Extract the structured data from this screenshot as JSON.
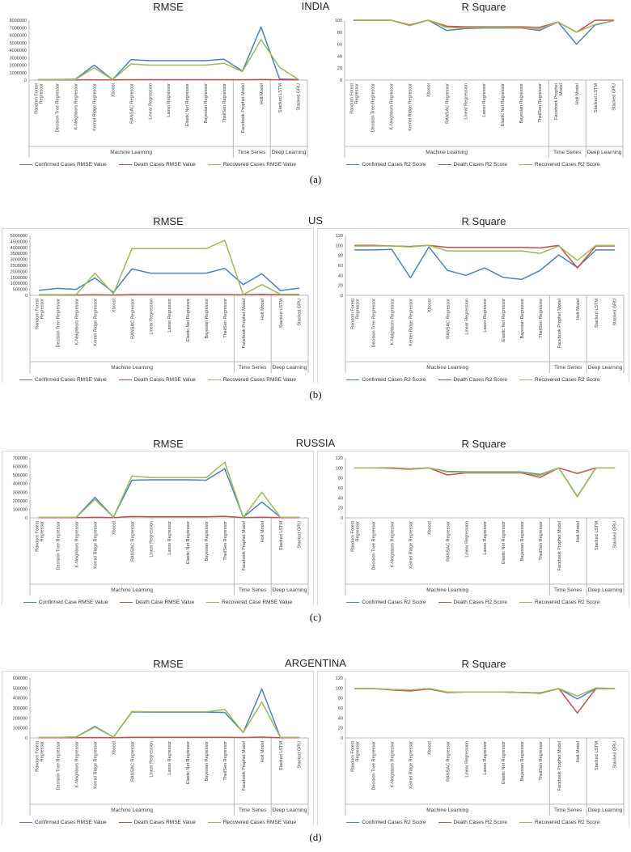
{
  "chart_data": {
    "type": "line",
    "legend_position": "bottom",
    "grid": false,
    "categories": [
      "Random Forest Regressor",
      "Decision Tree Regressor",
      "K-Neighbors Regressor",
      "Kernel Ridge Regressor",
      "Xboost",
      "RANSAC Regressor",
      "Linear Regression",
      "Lasso Regressor",
      "Elastic Net Regressor",
      "Bayesian Regressor",
      "TheilSen Regressor",
      "Facebook Prophet Model",
      "Holt Model",
      "Stacked LSTM",
      "Stacked GRU"
    ],
    "category_groups": [
      {
        "label": "Machine Learning",
        "count": 11
      },
      {
        "label": "Time Series",
        "count": 2
      },
      {
        "label": "Deep Learning",
        "count": 2
      }
    ],
    "default_category_wraps": {
      "0": [
        "Random Forest",
        "Regressor"
      ]
    },
    "colors": {
      "confirmed": "#4F81BD",
      "death": "#C0504D",
      "recovered": "#9BBB59"
    },
    "rows": [
      {
        "country": "INDIA",
        "caption": "(a)",
        "charts": [
          {
            "title": "RMSE",
            "ylim": [
              0,
              8000000
            ],
            "ytick_step": 1000000,
            "series": [
              {
                "name": "Confirmed Cases RMSE Value",
                "color": "#4F81BD",
                "values": [
                  80000,
                  80000,
                  120000,
                  2000000,
                  80000,
                  2750000,
                  2600000,
                  2600000,
                  2600000,
                  2600000,
                  2800000,
                  1200000,
                  7100000,
                  150000,
                  80000
                ]
              },
              {
                "name": "Death Cases RMSE Value",
                "color": "#C0504D",
                "values": [
                  20000,
                  20000,
                  20000,
                  40000,
                  20000,
                  50000,
                  50000,
                  50000,
                  50000,
                  50000,
                  50000,
                  40000,
                  80000,
                  40000,
                  20000
                ]
              },
              {
                "name": "Recovered Cases RMSE Value",
                "color": "#9BBB59",
                "values": [
                  60000,
                  60000,
                  80000,
                  1650000,
                  60000,
                  2150000,
                  2000000,
                  2000000,
                  2000000,
                  2000000,
                  2250000,
                  1150000,
                  5400000,
                  1700000,
                  120000
                ]
              }
            ]
          },
          {
            "title": "R Square",
            "ylim": [
              0,
              100
            ],
            "ytick_step": 20,
            "extra_category_wraps": {
              "11": [
                "Facebook Prophet",
                "Model"
              ]
            },
            "series": [
              {
                "name": "Confirmed Cases R2 Score",
                "color": "#4F81BD",
                "values": [
                  100,
                  100,
                  100,
                  92,
                  100,
                  83,
                  86,
                  87,
                  87,
                  87,
                  83,
                  97,
                  60,
                  92,
                  99
                ]
              },
              {
                "name": "Death Cases R2 Score",
                "color": "#C0504D",
                "values": [
                  100,
                  100,
                  100,
                  92,
                  100,
                  90,
                  89,
                  89,
                  89,
                  89,
                  88,
                  97,
                  80,
                  100,
                  100
                ]
              },
              {
                "name": "Recovered Cases R2 Score",
                "color": "#9BBB59",
                "values": [
                  100,
                  100,
                  100,
                  91,
                  100,
                  88,
                  87,
                  88,
                  88,
                  87,
                  85,
                  97,
                  80,
                  93,
                  99
                ]
              }
            ]
          }
        ]
      },
      {
        "country": "US",
        "caption": "(b)",
        "charts": [
          {
            "title": "RMSE",
            "ylim": [
              0,
              5000000
            ],
            "ytick_step": 500000,
            "series": [
              {
                "name": "Confirmed Cases RMSE Value",
                "color": "#4F81BD",
                "values": [
                  420000,
                  580000,
                  500000,
                  1450000,
                  250000,
                  2200000,
                  1850000,
                  1850000,
                  1850000,
                  1850000,
                  2250000,
                  900000,
                  1800000,
                  400000,
                  600000
                ]
              },
              {
                "name": "Death Cases RMSE Value",
                "color": "#C0504D",
                "values": [
                  30000,
                  30000,
                  30000,
                  50000,
                  30000,
                  60000,
                  60000,
                  60000,
                  60000,
                  60000,
                  60000,
                  40000,
                  80000,
                  40000,
                  40000
                ]
              },
              {
                "name": "Recovered Cases RMSE Value",
                "color": "#9BBB59",
                "values": [
                  60000,
                  60000,
                  70000,
                  1850000,
                  130000,
                  3900000,
                  3900000,
                  3900000,
                  3900000,
                  3900000,
                  4600000,
                  60000,
                  900000,
                  90000,
                  90000
                ]
              }
            ]
          },
          {
            "title": "R Square",
            "ylim": [
              0,
              120
            ],
            "ytick_step": 20,
            "series": [
              {
                "name": "Confirmed Cases R2 Score",
                "color": "#4F81BD",
                "values": [
                  91,
                  91,
                  92,
                  35,
                  97,
                  50,
                  40,
                  55,
                  36,
                  32,
                  50,
                  81,
                  56,
                  91,
                  91
                ]
              },
              {
                "name": "Death Cases R2 Score",
                "color": "#C0504D",
                "values": [
                  100,
                  100,
                  99,
                  98,
                  100,
                  96,
                  96,
                  96,
                  96,
                  96,
                  95,
                  100,
                  55,
                  99,
                  99
                ]
              },
              {
                "name": "Recovered Cases R2 Score",
                "color": "#9BBB59",
                "values": [
                  99,
                  99,
                  99,
                  97,
                  100,
                  89,
                  89,
                  89,
                  89,
                  89,
                  84,
                  99,
                  70,
                  100,
                  100
                ]
              }
            ]
          }
        ]
      },
      {
        "country": "RUSSIA",
        "caption": "(c)",
        "charts": [
          {
            "title": "RMSE",
            "ylim": [
              0,
              700000
            ],
            "ytick_step": 100000,
            "series": [
              {
                "name": "Confirmed Case RMSE Value",
                "color": "#4F81BD",
                "values": [
                  8000,
                  8000,
                  8000,
                  240000,
                  8000,
                  440000,
                  445000,
                  445000,
                  445000,
                  440000,
                  575000,
                  8000,
                  185000,
                  8000,
                  8000
                ]
              },
              {
                "name": "Death Case RMSE Value",
                "color": "#C0504D",
                "values": [
                  3000,
                  3000,
                  3000,
                  6000,
                  3000,
                  15000,
                  13000,
                  13000,
                  13000,
                  13000,
                  18000,
                  3000,
                  8000,
                  3000,
                  3000
                ]
              },
              {
                "name": "Recovered Case RMSE Value",
                "color": "#9BBB59",
                "values": [
                  8000,
                  8000,
                  8000,
                  215000,
                  8000,
                  490000,
                  470000,
                  470000,
                  470000,
                  470000,
                  650000,
                  8000,
                  300000,
                  8000,
                  8000
                ]
              }
            ]
          },
          {
            "title": "R Square",
            "ylim": [
              0,
              120
            ],
            "ytick_step": 20,
            "series": [
              {
                "name": "Confirmed Cases R2 Score",
                "color": "#4F81BD",
                "values": [
                  100,
                  100,
                  100,
                  98,
                  100,
                  93,
                  92,
                  92,
                  92,
                  92,
                  87,
                  100,
                  43,
                  100,
                  100
                ]
              },
              {
                "name": "Death Cases R2 Score",
                "color": "#C0504D",
                "values": [
                  100,
                  100,
                  100,
                  98,
                  100,
                  86,
                  90,
                  90,
                  90,
                  90,
                  81,
                  100,
                  89,
                  100,
                  100
                ]
              },
              {
                "name": "Recovered Cases R2 Score",
                "color": "#9BBB59",
                "values": [
                  100,
                  100,
                  99,
                  97,
                  100,
                  92,
                  91,
                  91,
                  91,
                  91,
                  85,
                  100,
                  42,
                  100,
                  100
                ]
              }
            ]
          }
        ]
      },
      {
        "country": "ARGENTINA",
        "caption": "(d)",
        "charts": [
          {
            "title": "RMSE",
            "ylim": [
              0,
              600000
            ],
            "ytick_step": 100000,
            "series": [
              {
                "name": "Confirmed Cases RMSE Value",
                "color": "#4F81BD",
                "values": [
                  5000,
                  5000,
                  10000,
                  115000,
                  8000,
                  260000,
                  258000,
                  258000,
                  258000,
                  258000,
                  255000,
                  55000,
                  490000,
                  5000,
                  5000
                ]
              },
              {
                "name": "Death Cases RMSE Value",
                "color": "#C0504D",
                "values": [
                  2000,
                  2000,
                  2000,
                  4000,
                  2000,
                  6000,
                  6000,
                  6000,
                  6000,
                  6000,
                  6000,
                  4000,
                  8000,
                  2000,
                  2000
                ]
              },
              {
                "name": "Recovered Cases RMSE Value",
                "color": "#9BBB59",
                "values": [
                  5000,
                  5000,
                  10000,
                  108000,
                  8000,
                  265000,
                  262000,
                  262000,
                  262000,
                  262000,
                  285000,
                  55000,
                  360000,
                  5000,
                  5000
                ]
              }
            ]
          },
          {
            "title": "R Square",
            "ylim": [
              0,
              120
            ],
            "ytick_step": 20,
            "series": [
              {
                "name": "Confirmed Cases R2 Score",
                "color": "#4F81BD",
                "values": [
                  99,
                  99,
                  97,
                  96,
                  99,
                  92,
                  92,
                  92,
                  92,
                  91,
                  90,
                  99,
                  78,
                  99,
                  99
                ]
              },
              {
                "name": "Death Cases R2 Score",
                "color": "#C0504D",
                "values": [
                  99,
                  99,
                  96,
                  94,
                  98,
                  91,
                  92,
                  92,
                  92,
                  91,
                  90,
                  99,
                  50,
                  99,
                  99
                ]
              },
              {
                "name": "Recovered Cases R2 Score",
                "color": "#9BBB59",
                "values": [
                  99,
                  99,
                  97,
                  96,
                  99,
                  92,
                  92,
                  92,
                  92,
                  91,
                  89,
                  99,
                  84,
                  100,
                  99
                ]
              }
            ]
          }
        ]
      }
    ]
  },
  "layout": {
    "row_tops": [
      0,
      265,
      540,
      812
    ]
  }
}
